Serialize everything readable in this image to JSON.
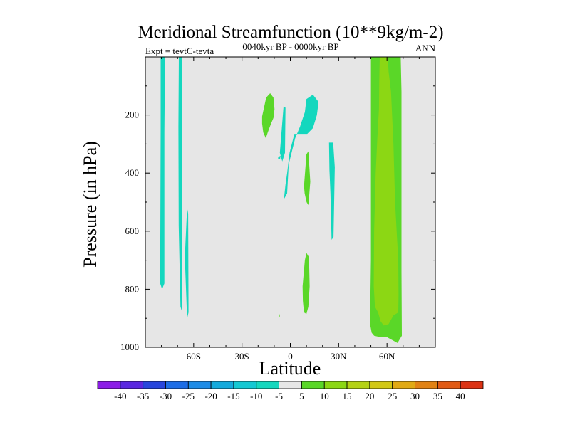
{
  "chart_data": {
    "type": "contour",
    "title": "Meridional Streamfunction (10**9kg/m-2)",
    "subtitle_left": "Expt = tevtC-tevta",
    "subtitle_center": "0040kyr BP - 0000kyr BP",
    "subtitle_right": "ANN",
    "xlabel": "Latitude",
    "ylabel": "Pressure (in hPa)",
    "xlim": [
      -90,
      90
    ],
    "ylim": [
      1000,
      0
    ],
    "x_ticks": [
      {
        "value": -60,
        "label": "60S"
      },
      {
        "value": -30,
        "label": "30S"
      },
      {
        "value": 0,
        "label": "0"
      },
      {
        "value": 30,
        "label": "30N"
      },
      {
        "value": 60,
        "label": "60N"
      }
    ],
    "y_ticks": [
      {
        "value": 200,
        "label": "200"
      },
      {
        "value": 400,
        "label": "400"
      },
      {
        "value": 600,
        "label": "600"
      },
      {
        "value": 800,
        "label": "800"
      },
      {
        "value": 1000,
        "label": "1000"
      }
    ],
    "background_fill": "#e6e6e6",
    "colorbar": {
      "labels": [
        "-40",
        "-35",
        "-30",
        "-25",
        "-20",
        "-15",
        "-10",
        "-5",
        "5",
        "10",
        "15",
        "20",
        "25",
        "30",
        "35",
        "40"
      ],
      "colors": [
        "#8c1ee6",
        "#5a28e0",
        "#2846dc",
        "#1e6ee6",
        "#1e8ce6",
        "#14aadc",
        "#14c8d2",
        "#14d7be",
        "#e6e6e6",
        "#5ad728",
        "#8cd714",
        "#b4d214",
        "#d2c814",
        "#e1aa14",
        "#e18214",
        "#e15a14",
        "#dc3214"
      ]
    },
    "regions": [
      {
        "color": "#14d7be",
        "points": [
          [
            -80.5,
            0
          ],
          [
            -77.8,
            0
          ],
          [
            -78.2,
            260
          ],
          [
            -78.2,
            780
          ],
          [
            -79.6,
            800
          ],
          [
            -80.8,
            780
          ],
          [
            -80.5,
            250
          ]
        ]
      },
      {
        "color": "#14d7be",
        "points": [
          [
            -69.2,
            0
          ],
          [
            -67.1,
            0
          ],
          [
            -67.3,
            420
          ],
          [
            -67.1,
            880
          ],
          [
            -68.2,
            860
          ],
          [
            -69.3,
            580
          ],
          [
            -69.5,
            240
          ]
        ]
      },
      {
        "color": "#14d7be",
        "points": [
          [
            -64.1,
            520
          ],
          [
            -63.4,
            540
          ],
          [
            -63.2,
            880
          ],
          [
            -64.1,
            900
          ],
          [
            -65.5,
            690
          ]
        ]
      },
      {
        "color": "#14d7be",
        "points": [
          [
            -4.0,
            490
          ],
          [
            -2.0,
            470
          ],
          [
            -1.0,
            370
          ],
          [
            3.0,
            280
          ],
          [
            6.0,
            240
          ],
          [
            9.0,
            190
          ],
          [
            10.0,
            145
          ],
          [
            14.0,
            130
          ],
          [
            17.5,
            155
          ],
          [
            16.5,
            200
          ],
          [
            14.0,
            245
          ],
          [
            10.5,
            265
          ],
          [
            7.5,
            265
          ],
          [
            2.5,
            265
          ],
          [
            -0.5,
            330
          ],
          [
            -2.0,
            400
          ],
          [
            -3.0,
            440
          ]
        ]
      },
      {
        "color": "#14d7be",
        "points": [
          [
            -6.5,
            330
          ],
          [
            -4.2,
            170
          ],
          [
            -3.0,
            175
          ],
          [
            -3.3,
            330
          ],
          [
            -5.0,
            360
          ]
        ]
      },
      {
        "color": "#14d7be",
        "points": [
          [
            -7.5,
            345
          ],
          [
            -6.0,
            340
          ],
          [
            -6.4,
            352
          ],
          [
            -7.6,
            352
          ]
        ]
      },
      {
        "color": "#14d7be",
        "points": [
          [
            24.0,
            295
          ],
          [
            26.6,
            295
          ],
          [
            27.6,
            380
          ],
          [
            26.8,
            620
          ],
          [
            25.6,
            630
          ],
          [
            24.9,
            470
          ],
          [
            24.3,
            390
          ]
        ]
      },
      {
        "color": "#5ad728",
        "points": [
          [
            -17.5,
            205
          ],
          [
            -15.0,
            140
          ],
          [
            -12.5,
            125
          ],
          [
            -10.5,
            140
          ],
          [
            -9.8,
            180
          ],
          [
            -10.5,
            210
          ],
          [
            -12.0,
            230
          ],
          [
            -14.0,
            260
          ],
          [
            -15.2,
            280
          ],
          [
            -16.8,
            260
          ],
          [
            -17.5,
            230
          ]
        ]
      },
      {
        "color": "#5ad728",
        "points": [
          [
            8.5,
            445
          ],
          [
            10.0,
            335
          ],
          [
            11.2,
            325
          ],
          [
            12.4,
            430
          ],
          [
            11.8,
            470
          ],
          [
            11.2,
            510
          ],
          [
            10.1,
            500
          ],
          [
            8.9,
            470
          ]
        ]
      },
      {
        "color": "#5ad728",
        "points": [
          [
            7.6,
            790
          ],
          [
            9.0,
            700
          ],
          [
            10.0,
            675
          ],
          [
            11.6,
            690
          ],
          [
            12.0,
            790
          ],
          [
            11.2,
            860
          ],
          [
            10.0,
            885
          ],
          [
            8.5,
            880
          ],
          [
            7.8,
            840
          ]
        ]
      },
      {
        "color": "#5ad728",
        "points": [
          [
            -7.0,
            890
          ],
          [
            -6.6,
            885
          ],
          [
            -6.6,
            895
          ],
          [
            -7.0,
            895
          ]
        ]
      },
      {
        "color": "#5ad728",
        "points": [
          [
            50.0,
            0
          ],
          [
            68.5,
            0
          ],
          [
            69.0,
            120
          ],
          [
            69.0,
            740
          ],
          [
            69.2,
            960
          ],
          [
            66.5,
            985
          ],
          [
            60.0,
            965
          ],
          [
            56.0,
            965
          ],
          [
            52.0,
            960
          ],
          [
            50.5,
            950
          ],
          [
            49.5,
            920
          ],
          [
            50.0,
            700
          ],
          [
            50.0,
            250
          ]
        ]
      },
      {
        "color": "#8cd714",
        "points": [
          [
            55.5,
            0
          ],
          [
            60.5,
            0
          ],
          [
            61.0,
            50
          ],
          [
            62.5,
            120
          ],
          [
            64.0,
            300
          ],
          [
            65.0,
            500
          ],
          [
            66.0,
            600
          ],
          [
            67.0,
            700
          ],
          [
            67.2,
            820
          ],
          [
            67.0,
            880
          ],
          [
            64.0,
            890
          ],
          [
            61.0,
            920
          ],
          [
            58.0,
            925
          ],
          [
            56.0,
            910
          ],
          [
            54.5,
            880
          ],
          [
            52.5,
            860
          ],
          [
            51.8,
            790
          ],
          [
            52.0,
            600
          ],
          [
            53.0,
            400
          ],
          [
            54.0,
            280
          ],
          [
            55.0,
            180
          ],
          [
            55.2,
            80
          ]
        ]
      }
    ]
  }
}
